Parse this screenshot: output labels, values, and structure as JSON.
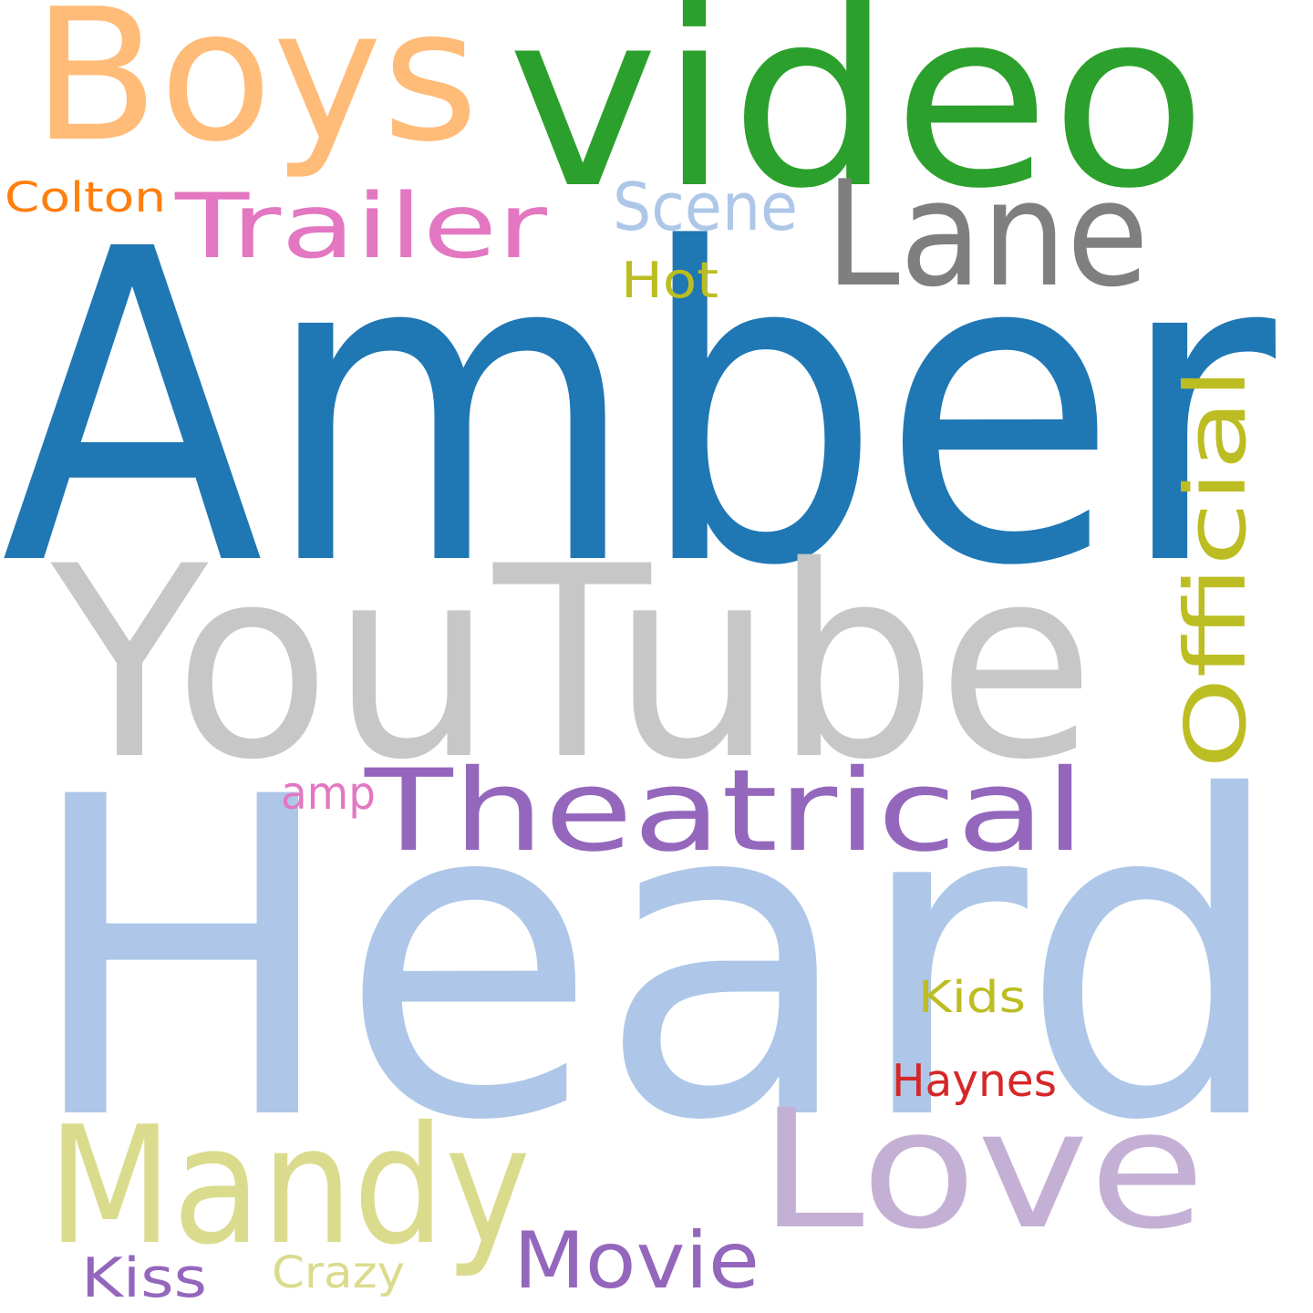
{
  "words": [
    {
      "id": "amber",
      "text": "Amber",
      "color": "#1f77b4"
    },
    {
      "id": "heard",
      "text": "Heard",
      "color": "#aec7e8"
    },
    {
      "id": "youtube",
      "text": "YouTube",
      "color": "#c7c7c7"
    },
    {
      "id": "video",
      "text": "video",
      "color": "#2ca02c"
    },
    {
      "id": "boys",
      "text": "Boys",
      "color": "#ffbb78"
    },
    {
      "id": "lane",
      "text": "Lane",
      "color": "#7f7f7f"
    },
    {
      "id": "trailer",
      "text": "Trailer",
      "color": "#e377c2"
    },
    {
      "id": "scene",
      "text": "Scene",
      "color": "#aec7e8"
    },
    {
      "id": "colton",
      "text": "Colton",
      "color": "#ff7f0e"
    },
    {
      "id": "hot",
      "text": "Hot",
      "color": "#bcbd22"
    },
    {
      "id": "official",
      "text": "Official",
      "color": "#bcbd22"
    },
    {
      "id": "theatrical",
      "text": "Theatrical",
      "color": "#9467bd"
    },
    {
      "id": "amp",
      "text": "amp",
      "color": "#e377c2"
    },
    {
      "id": "kids",
      "text": "Kids",
      "color": "#bcbd22"
    },
    {
      "id": "haynes",
      "text": "Haynes",
      "color": "#d62728"
    },
    {
      "id": "mandy",
      "text": "Mandy",
      "color": "#dbdb8d"
    },
    {
      "id": "love",
      "text": "Love",
      "color": "#c5b0d5"
    },
    {
      "id": "movie",
      "text": "Movie",
      "color": "#9467bd"
    },
    {
      "id": "kiss",
      "text": "Kiss",
      "color": "#9467bd"
    },
    {
      "id": "crazy",
      "text": "Crazy",
      "color": "#dbdb8d"
    }
  ]
}
